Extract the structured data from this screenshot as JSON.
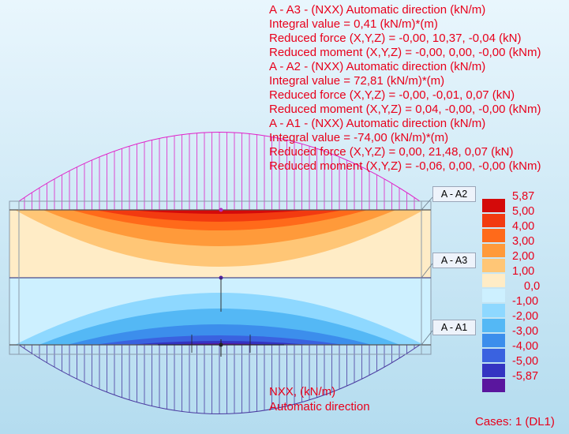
{
  "results": [
    {
      "header": "A - A3 - (NXX) Automatic direction (kN/m)",
      "integral": "Integral value = 0,41 (kN/m)*(m)",
      "force": "Reduced force (X,Y,Z) = -0,00, 10,37, -0,04 (kN)",
      "moment": "Reduced moment (X,Y,Z) = -0,00, 0,00, -0,00 (kNm)"
    },
    {
      "header": "A - A2 - (NXX) Automatic direction (kN/m)",
      "integral": "Integral value = 72,81 (kN/m)*(m)",
      "force": "Reduced force (X,Y,Z) = -0,00, -0,01, 0,07 (kN)",
      "moment": "Reduced moment (X,Y,Z) = 0,04, -0,00, -0,00 (kNm)"
    },
    {
      "header": "A - A1 - (NXX) Automatic direction (kN/m)",
      "integral": "Integral value = -74,00 (kN/m)*(m)",
      "force": "Reduced force (X,Y,Z) = 0,00, 21,48, 0,07 (kN)",
      "moment": "Reduced moment (X,Y,Z) = -0,06, 0,00, -0,00 (kNm)"
    }
  ],
  "cut_labels": [
    "A - A2",
    "A - A3",
    "A - A1"
  ],
  "legend": {
    "ticks": [
      "5,87",
      "5,00",
      "4,00",
      "3,00",
      "2,00",
      "1,00",
      "0,0",
      "-1,00",
      "-2,00",
      "-3,00",
      "-4,00",
      "-5,00",
      "-5,87"
    ],
    "colors": [
      "#d40a0a",
      "#f23a10",
      "#ff6a1a",
      "#ff9a3a",
      "#ffc676",
      "#ffecc6",
      "#cdf0ff",
      "#8ed8ff",
      "#54b8f5",
      "#3c8eec",
      "#3a62e0",
      "#3434c2",
      "#5a169e"
    ]
  },
  "quantity_label": "NXX, (kN/m)",
  "direction_label": "Automatic direction",
  "cases_label": "Cases: 1 (DL1)",
  "colors": {
    "text_accent": "#e8001b",
    "background_top": "#e9f6fd",
    "background_bottom": "#b4dcef",
    "top_diagram": "#e020c8",
    "bottom_diagram": "#4a3aa0"
  }
}
